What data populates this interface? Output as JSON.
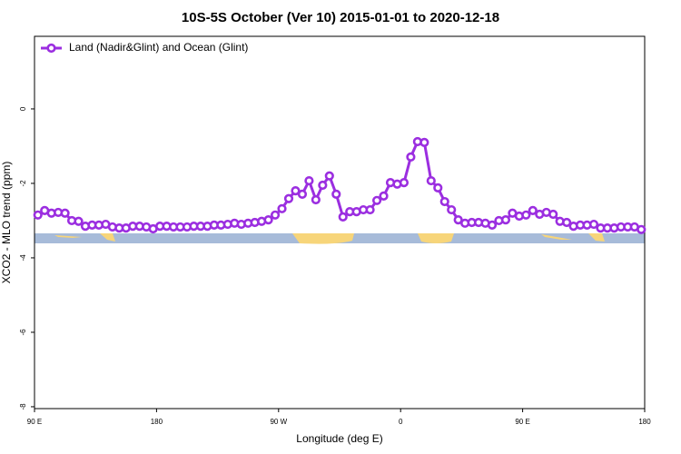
{
  "chart_data": {
    "type": "line",
    "title": "10S-5S October (Ver 10)   2015-01-01 to 2020-12-18",
    "x_label": "Longitude (deg E)",
    "y_label": "XCO2 - MLO trend (ppm)",
    "legend": "top-left",
    "xlim": [
      90,
      540
    ],
    "ylim": [
      -8.05,
      1.95
    ],
    "xticks": [
      {
        "value": 90,
        "label": "90 E"
      },
      180,
      {
        "value": 270,
        "label": "90 W"
      },
      {
        "value": 360,
        "label": "0"
      },
      {
        "value": 450,
        "label": "90 E"
      },
      {
        "value": 540,
        "label": "180"
      }
    ],
    "yticks": [
      0,
      -2,
      -4,
      -6,
      -8
    ],
    "x": [
      92.5,
      97.5,
      102.5,
      107.5,
      112.5,
      117.5,
      122.5,
      127.5,
      132.5,
      137.5,
      142.5,
      147.5,
      152.5,
      157.5,
      162.5,
      167.5,
      172.5,
      177.5,
      182.5,
      187.5,
      192.5,
      197.5,
      202.5,
      207.5,
      212.5,
      217.5,
      222.5,
      227.5,
      232.5,
      237.5,
      242.5,
      247.5,
      252.5,
      257.5,
      262.5,
      267.5,
      272.5,
      277.5,
      282.5,
      287.5,
      292.5,
      297.5,
      302.5,
      307.5,
      312.5,
      317.5,
      322.5,
      327.5,
      332.5,
      337.5,
      342.5,
      347.5,
      352.5,
      357.5,
      362.5,
      367.5,
      372.5,
      377.5,
      382.5,
      387.5,
      392.5,
      397.5,
      402.5,
      407.5,
      412.5,
      417.5,
      422.5,
      427.5,
      432.5,
      437.5,
      442.5,
      447.5,
      452.5,
      457.5,
      462.5,
      467.5,
      472.5,
      477.5,
      482.5,
      487.5,
      492.5,
      497.5,
      502.5,
      507.5,
      512.5,
      517.5,
      522.5,
      527.5,
      532.5,
      537.5
    ],
    "series": [
      {
        "name": "Land (Nadir&Glint) and Ocean (Glint)",
        "color": "#9b2ee0",
        "values": [
          -2.85,
          -2.73,
          -2.8,
          -2.78,
          -2.8,
          -3.0,
          -3.02,
          -3.15,
          -3.12,
          -3.12,
          -3.1,
          -3.17,
          -3.2,
          -3.2,
          -3.15,
          -3.15,
          -3.17,
          -3.22,
          -3.15,
          -3.15,
          -3.17,
          -3.17,
          -3.17,
          -3.15,
          -3.15,
          -3.15,
          -3.12,
          -3.12,
          -3.1,
          -3.07,
          -3.1,
          -3.07,
          -3.05,
          -3.02,
          -2.98,
          -2.85,
          -2.68,
          -2.41,
          -2.2,
          -2.29,
          -1.93,
          -2.44,
          -2.05,
          -1.8,
          -2.29,
          -2.9,
          -2.76,
          -2.76,
          -2.71,
          -2.71,
          -2.46,
          -2.34,
          -1.98,
          -2.02,
          -1.98,
          -1.29,
          -0.88,
          -0.9,
          -1.93,
          -2.12,
          -2.49,
          -2.71,
          -2.98,
          -3.07,
          -3.05,
          -3.05,
          -3.07,
          -3.12,
          -3.0,
          -2.98,
          -2.8,
          -2.88,
          -2.85,
          -2.73,
          -2.83,
          -2.78,
          -2.83,
          -3.02,
          -3.05,
          -3.15,
          -3.12,
          -3.12,
          -3.1,
          -3.2,
          -3.2,
          -3.2,
          -3.17,
          -3.17,
          -3.17,
          -3.24
        ]
      }
    ]
  }
}
